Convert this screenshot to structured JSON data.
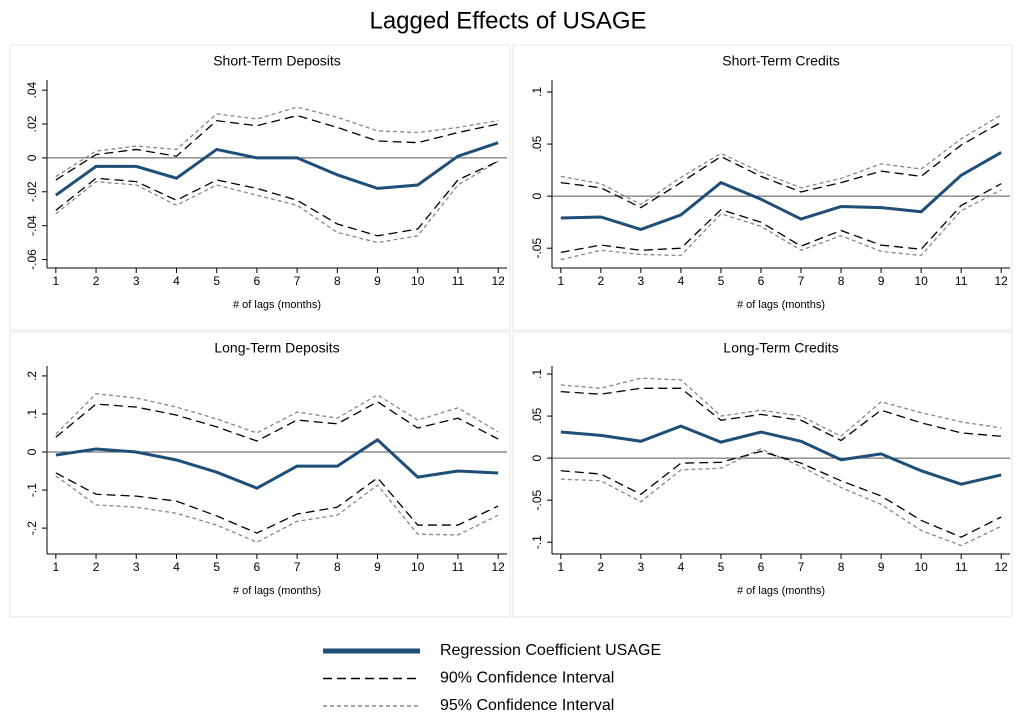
{
  "title": "Lagged Effects of USAGE",
  "legend": [
    {
      "name": "Regression Coefficient USAGE",
      "color": "#1f4e79",
      "line_style": "solid"
    },
    {
      "name": "90% Confidence Interval",
      "color": "#000000",
      "line_style": "dashed"
    },
    {
      "name": "95% Confidence Interval",
      "color": "#888888",
      "line_style": "dotted"
    }
  ],
  "chart_data": [
    {
      "type": "line",
      "title": "Short-Term Deposits",
      "xlabel": "# of lags (months)",
      "x": [
        1,
        2,
        3,
        4,
        5,
        6,
        7,
        8,
        9,
        10,
        11,
        12
      ],
      "xticks": [
        1,
        2,
        3,
        4,
        5,
        6,
        7,
        8,
        9,
        10,
        11,
        12
      ],
      "xlim": [
        0.78,
        12.22
      ],
      "ylim": [
        -0.065,
        0.046
      ],
      "hline": 0,
      "yticks": [
        {
          "value": -0.06,
          "label": "-.06"
        },
        {
          "value": -0.04,
          "label": "-.04"
        },
        {
          "value": -0.02,
          "label": "-.02"
        },
        0,
        {
          "value": 0.02,
          "label": ".02"
        },
        {
          "value": 0.04,
          "label": ".04"
        }
      ],
      "series": [
        {
          "values": [
            -0.022,
            -0.005,
            -0.005,
            -0.012,
            0.005,
            0,
            0,
            -0.01,
            -0.018,
            -0.016,
            0.001,
            0.009
          ]
        },
        {
          "upper": [
            -0.013,
            0.002,
            0.005,
            0.001,
            0.022,
            0.019,
            0.025,
            0.018,
            0.01,
            0.009,
            0.015,
            0.02
          ],
          "lower": [
            -0.031,
            -0.012,
            -0.014,
            -0.025,
            -0.013,
            -0.018,
            -0.025,
            -0.039,
            -0.046,
            -0.042,
            -0.013,
            -0.002
          ]
        },
        {
          "upper": [
            -0.011,
            0.004,
            0.007,
            0.005,
            0.026,
            0.023,
            0.03,
            0.024,
            0.016,
            0.015,
            0.018,
            0.022
          ],
          "lower": [
            -0.033,
            -0.014,
            -0.016,
            -0.028,
            -0.016,
            -0.022,
            -0.028,
            -0.044,
            -0.05,
            -0.046,
            -0.016,
            -0.002
          ]
        }
      ]
    },
    {
      "type": "line",
      "title": "Short-Term Credits",
      "xlabel": "# of lags (months)",
      "x": [
        1,
        2,
        3,
        4,
        5,
        6,
        7,
        8,
        9,
        10,
        11,
        12
      ],
      "xticks": [
        1,
        2,
        3,
        4,
        5,
        6,
        7,
        8,
        9,
        10,
        11,
        12
      ],
      "xlim": [
        0.78,
        12.22
      ],
      "ylim": [
        -0.069,
        0.1115
      ],
      "hline": 0,
      "yticks": [
        {
          "value": -0.05,
          "label": "-.05"
        },
        0,
        {
          "value": 0.05,
          "label": ".05"
        },
        {
          "value": 0.1,
          "label": ".1"
        }
      ],
      "series": [
        {
          "values": [
            -0.021,
            -0.02,
            -0.032,
            -0.018,
            0.013,
            -0.003,
            -0.022,
            -0.01,
            -0.011,
            -0.015,
            0.02,
            0.042
          ]
        },
        {
          "upper": [
            0.013,
            0.008,
            -0.011,
            0.013,
            0.038,
            0.019,
            0.004,
            0.013,
            0.024,
            0.019,
            0.049,
            0.071
          ],
          "lower": [
            -0.054,
            -0.047,
            -0.052,
            -0.05,
            -0.013,
            -0.025,
            -0.048,
            -0.033,
            -0.047,
            -0.051,
            -0.009,
            0.012
          ]
        },
        {
          "upper": [
            0.019,
            0.012,
            -0.008,
            0.018,
            0.041,
            0.023,
            0.008,
            0.017,
            0.031,
            0.026,
            0.055,
            0.078
          ],
          "lower": [
            -0.061,
            -0.052,
            -0.056,
            -0.057,
            -0.017,
            -0.029,
            -0.052,
            -0.038,
            -0.053,
            -0.057,
            -0.014,
            0.006
          ]
        }
      ]
    },
    {
      "type": "line",
      "title": "Long-Term Deposits",
      "xlabel": "# of lags (months)",
      "x": [
        1,
        2,
        3,
        4,
        5,
        6,
        7,
        8,
        9,
        10,
        11,
        12
      ],
      "xticks": [
        1,
        2,
        3,
        4,
        5,
        6,
        7,
        8,
        9,
        10,
        11,
        12
      ],
      "xlim": [
        0.78,
        12.22
      ],
      "ylim": [
        -0.268,
        0.226
      ],
      "hline": 0,
      "yticks": [
        {
          "value": -0.2,
          "label": "-.2"
        },
        {
          "value": -0.1,
          "label": "-.1"
        },
        0,
        {
          "value": 0.1,
          "label": ".1"
        },
        {
          "value": 0.2,
          "label": ".2"
        }
      ],
      "series": [
        {
          "values": [
            -0.008,
            0.008,
            0,
            -0.021,
            -0.053,
            -0.095,
            -0.037,
            -0.037,
            0.032,
            -0.066,
            -0.05,
            -0.055
          ]
        },
        {
          "upper": [
            0.039,
            0.126,
            0.118,
            0.097,
            0.066,
            0.029,
            0.084,
            0.074,
            0.132,
            0.063,
            0.089,
            0.034
          ],
          "lower": [
            -0.055,
            -0.111,
            -0.116,
            -0.129,
            -0.168,
            -0.213,
            -0.163,
            -0.145,
            -0.068,
            -0.192,
            -0.192,
            -0.142
          ]
        },
        {
          "upper": [
            0.047,
            0.153,
            0.142,
            0.118,
            0.087,
            0.05,
            0.105,
            0.089,
            0.15,
            0.084,
            0.116,
            0.053
          ],
          "lower": [
            -0.063,
            -0.139,
            -0.145,
            -0.161,
            -0.192,
            -0.237,
            -0.182,
            -0.166,
            -0.087,
            -0.216,
            -0.218,
            -0.166
          ]
        }
      ]
    },
    {
      "type": "line",
      "title": "Long-Term Credits",
      "xlabel": "# of lags (months)",
      "x": [
        1,
        2,
        3,
        4,
        5,
        6,
        7,
        8,
        9,
        10,
        11,
        12
      ],
      "xticks": [
        1,
        2,
        3,
        4,
        5,
        6,
        7,
        8,
        9,
        10,
        11,
        12
      ],
      "xlim": [
        0.78,
        12.22
      ],
      "ylim": [
        -0.114,
        0.1095
      ],
      "hline": 0,
      "yticks": [
        {
          "value": -0.1,
          "label": "-.1"
        },
        {
          "value": -0.05,
          "label": "-.05"
        },
        0,
        {
          "value": 0.05,
          "label": ".05"
        },
        {
          "value": 0.1,
          "label": ".1"
        }
      ],
      "series": [
        {
          "values": [
            0.031,
            0.027,
            0.02,
            0.038,
            0.019,
            0.031,
            0.02,
            -0.002,
            0.005,
            -0.015,
            -0.031,
            -0.02
          ]
        },
        {
          "upper": [
            0.079,
            0.076,
            0.083,
            0.083,
            0.045,
            0.052,
            0.045,
            0.021,
            0.057,
            0.042,
            0.03,
            0.026
          ],
          "lower": [
            -0.015,
            -0.019,
            -0.043,
            -0.006,
            -0.005,
            0.008,
            -0.006,
            -0.027,
            -0.045,
            -0.074,
            -0.094,
            -0.07
          ]
        },
        {
          "upper": [
            0.087,
            0.083,
            0.095,
            0.093,
            0.05,
            0.057,
            0.05,
            0.026,
            0.067,
            0.054,
            0.043,
            0.036
          ],
          "lower": [
            -0.025,
            -0.027,
            -0.052,
            -0.014,
            -0.012,
            0.011,
            -0.01,
            -0.035,
            -0.055,
            -0.086,
            -0.104,
            -0.081
          ]
        }
      ]
    }
  ]
}
